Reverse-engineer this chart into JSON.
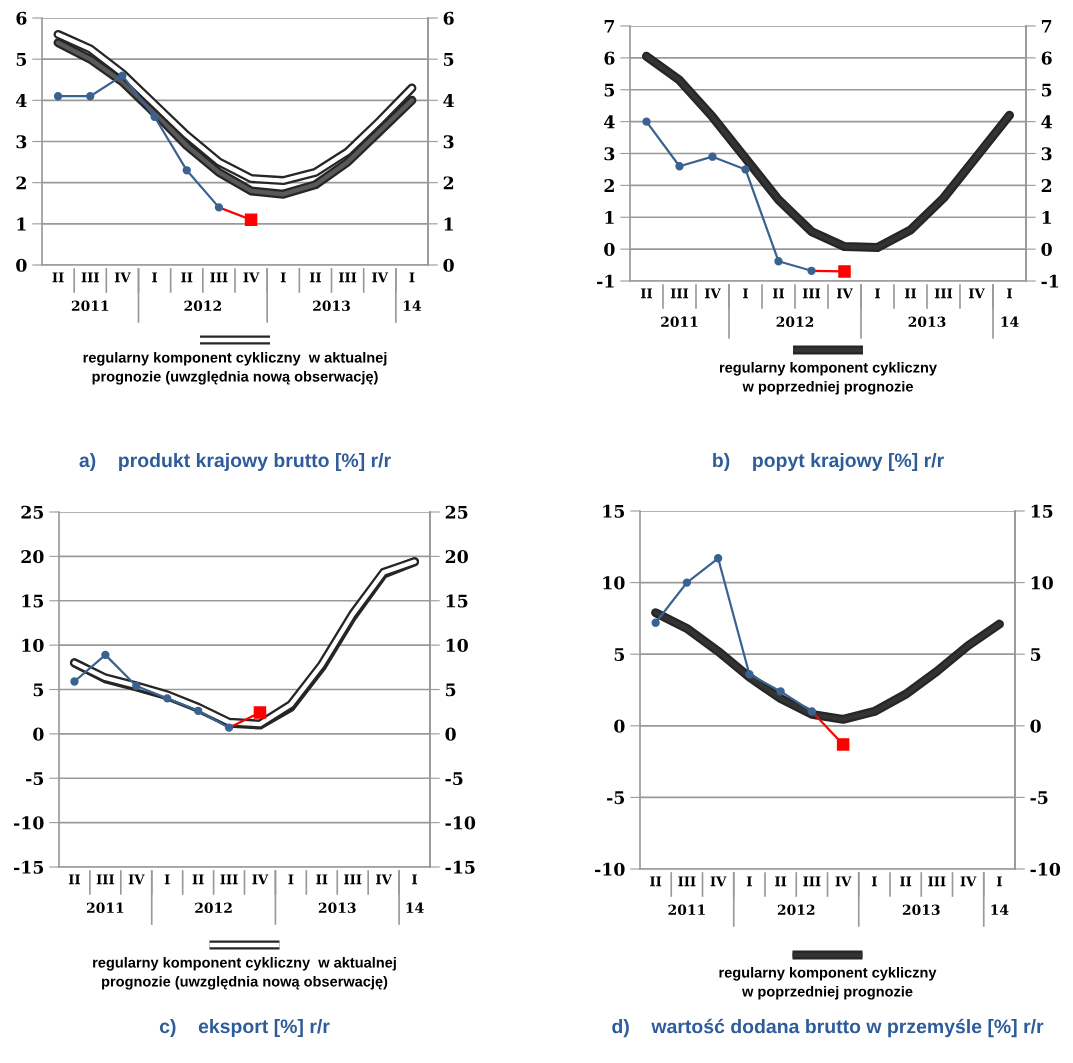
{
  "chart_data": [
    {
      "type": "line",
      "title": "a)    produkt krajowy brutto [%] r/r",
      "categories": [
        "II",
        "III",
        "IV",
        "I",
        "II",
        "III",
        "IV",
        "I",
        "II",
        "III",
        "IV",
        "I"
      ],
      "annotations": [
        "2011",
        "2012",
        "2013",
        "14"
      ],
      "ylim": [
        0,
        6
      ],
      "yticks": [
        0,
        1,
        2,
        3,
        4,
        5,
        6
      ],
      "y2lim": [
        0,
        6
      ],
      "y2ticks": [
        0,
        1,
        2,
        3,
        4,
        5,
        6
      ],
      "grid": "y",
      "legend": "bottom",
      "series": [
        {
          "color": "#595959",
          "marker": "none",
          "values": [
            5.4,
            5.0,
            4.45,
            3.7,
            2.9,
            2.25,
            1.8,
            1.72,
            1.95,
            2.5,
            3.25,
            4.0
          ]
        },
        {
          "name": "regularny komponent cykliczny  w aktualnej\nprognozie (uwzględnia nową obserwację)",
          "color": "#ffffff",
          "marker": "none",
          "values": [
            5.6,
            5.25,
            4.65,
            3.9,
            3.15,
            2.5,
            2.1,
            2.05,
            2.25,
            2.75,
            3.5,
            4.3
          ]
        },
        {
          "color": "#ff0000",
          "marker": "square",
          "values": [
            null,
            null,
            null,
            null,
            null,
            1.4,
            1.1,
            null,
            null,
            null,
            null,
            null
          ]
        },
        {
          "color": "#3a6291",
          "marker": "circle",
          "values": [
            4.1,
            4.1,
            4.6,
            3.6,
            2.3,
            1.4,
            null,
            null,
            null,
            null,
            null,
            null
          ]
        }
      ]
    },
    {
      "type": "line",
      "title": "b)    popyt krajowy [%] r/r",
      "categories": [
        "II",
        "III",
        "IV",
        "I",
        "II",
        "III",
        "IV",
        "I",
        "II",
        "III",
        "IV",
        "I"
      ],
      "annotations": [
        "2011",
        "2012",
        "2013",
        "14"
      ],
      "ylim": [
        -1,
        7
      ],
      "yticks": [
        -1,
        0,
        1,
        2,
        3,
        4,
        5,
        6,
        7
      ],
      "y2lim": [
        -1,
        7
      ],
      "y2ticks": [
        -1,
        0,
        1,
        2,
        3,
        4,
        5,
        6,
        7
      ],
      "grid": "y",
      "legend": "bottom",
      "series": [
        {
          "name": "regularny komponent cykliczny\nw poprzedniej prognozie",
          "color": "#333333",
          "marker": "none",
          "values": [
            6.05,
            5.3,
            4.15,
            2.85,
            1.55,
            0.55,
            0.08,
            0.05,
            0.6,
            1.6,
            2.9,
            4.2
          ]
        },
        {
          "color": "#ff0000",
          "marker": "square",
          "values": [
            null,
            null,
            null,
            null,
            null,
            -0.68,
            -0.7,
            null,
            null,
            null,
            null,
            null
          ]
        },
        {
          "color": "#3a6291",
          "marker": "circle",
          "values": [
            4.0,
            2.6,
            2.9,
            2.5,
            -0.38,
            -0.68,
            null,
            null,
            null,
            null,
            null,
            null
          ]
        }
      ]
    },
    {
      "type": "line",
      "title": "c)    eksport [%] r/r",
      "categories": [
        "II",
        "III",
        "IV",
        "I",
        "II",
        "III",
        "IV",
        "I",
        "II",
        "III",
        "IV",
        "I"
      ],
      "annotations": [
        "2011",
        "2012",
        "2013",
        "14"
      ],
      "ylim": [
        -15,
        25
      ],
      "yticks": [
        -15,
        -10,
        -5,
        0,
        5,
        10,
        15,
        20,
        25
      ],
      "y2lim": [
        -15,
        25
      ],
      "y2ticks": [
        -15,
        -10,
        -5,
        0,
        5,
        10,
        15,
        20,
        25
      ],
      "grid": "y",
      "legend": "bottom",
      "series": [
        {
          "color": "#333333",
          "marker": "none",
          "values": [
            8.0,
            6.2,
            5.3,
            4.3,
            2.9,
            1.2,
            1.0,
            3.0,
            7.5,
            13.2,
            18.0,
            19.4
          ]
        },
        {
          "name": "regularny komponent cykliczny  w aktualnej\nprognozie (uwzględnia nową obserwację)",
          "color": "#ffffff",
          "marker": "none",
          "values": [
            8.0,
            6.3,
            5.4,
            4.4,
            3.0,
            1.3,
            1.1,
            3.3,
            7.8,
            13.5,
            18.2,
            19.4
          ]
        },
        {
          "color": "#ff0000",
          "marker": "square",
          "values": [
            null,
            null,
            null,
            null,
            null,
            0.7,
            2.4,
            null,
            null,
            null,
            null,
            null
          ]
        },
        {
          "color": "#3a6291",
          "marker": "circle",
          "values": [
            5.9,
            8.9,
            5.4,
            4.0,
            2.6,
            0.7,
            null,
            null,
            null,
            null,
            null,
            null
          ]
        }
      ]
    },
    {
      "type": "line",
      "title": "d)    wartość dodana brutto w przemyśle [%] r/r",
      "categories": [
        "II",
        "III",
        "IV",
        "I",
        "II",
        "III",
        "IV",
        "I",
        "II",
        "III",
        "IV",
        "I"
      ],
      "annotations": [
        "2011",
        "2012",
        "2013",
        "14"
      ],
      "ylim": [
        -10,
        15
      ],
      "yticks": [
        -10,
        -5,
        0,
        5,
        10,
        15
      ],
      "y2lim": [
        -10,
        15
      ],
      "y2ticks": [
        -10,
        -5,
        0,
        5,
        10,
        15
      ],
      "grid": "y",
      "legend": "bottom",
      "series": [
        {
          "name": "regularny komponent cykliczny\nw poprzedniej prognozie",
          "color": "#333333",
          "marker": "none",
          "values": [
            7.9,
            6.8,
            5.2,
            3.4,
            1.9,
            0.8,
            0.45,
            1.0,
            2.2,
            3.8,
            5.6,
            7.1
          ]
        },
        {
          "color": "#ff0000",
          "marker": "square",
          "values": [
            null,
            null,
            null,
            null,
            null,
            1.0,
            -1.3,
            null,
            null,
            null,
            null,
            null
          ]
        },
        {
          "color": "#3a6291",
          "marker": "circle",
          "values": [
            7.2,
            10.0,
            11.7,
            3.6,
            2.4,
            1.0,
            null,
            null,
            null,
            null,
            null,
            null
          ]
        }
      ]
    }
  ]
}
